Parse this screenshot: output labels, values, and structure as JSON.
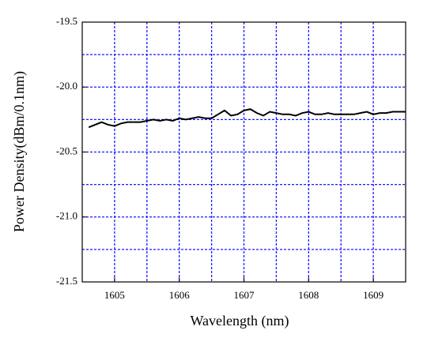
{
  "chart_data": {
    "type": "line",
    "xlabel": "Wavelength (nm)",
    "ylabel": "Power Density(dBm/0.1nm)",
    "x": [
      1604.6,
      1604.7,
      1604.8,
      1604.9,
      1605.0,
      1605.1,
      1605.2,
      1605.3,
      1605.4,
      1605.5,
      1605.6,
      1605.7,
      1605.8,
      1605.9,
      1606.0,
      1606.1,
      1606.2,
      1606.3,
      1606.4,
      1606.5,
      1606.6,
      1606.7,
      1606.8,
      1606.9,
      1607.0,
      1607.1,
      1607.2,
      1607.3,
      1607.4,
      1607.5,
      1607.6,
      1607.7,
      1607.8,
      1607.9,
      1608.0,
      1608.1,
      1608.2,
      1608.3,
      1608.4,
      1608.5,
      1608.6,
      1608.7,
      1608.8,
      1608.9,
      1609.0,
      1609.1,
      1609.2,
      1609.3,
      1609.4,
      1609.5
    ],
    "values": [
      -20.31,
      -20.29,
      -20.27,
      -20.29,
      -20.3,
      -20.28,
      -20.27,
      -20.27,
      -20.27,
      -20.26,
      -20.25,
      -20.26,
      -20.25,
      -20.26,
      -20.24,
      -20.25,
      -20.24,
      -20.23,
      -20.24,
      -20.24,
      -20.21,
      -20.18,
      -20.22,
      -20.21,
      -20.18,
      -20.17,
      -20.2,
      -20.22,
      -20.19,
      -20.2,
      -20.21,
      -20.21,
      -20.22,
      -20.2,
      -20.19,
      -20.21,
      -20.21,
      -20.2,
      -20.21,
      -20.21,
      -20.21,
      -20.21,
      -20.2,
      -20.19,
      -20.21,
      -20.2,
      -20.2,
      -20.19,
      -20.19,
      -20.19
    ],
    "color": "#000000",
    "xlim": [
      1604.5,
      1609.5
    ],
    "xticks": [
      1605,
      1606,
      1607,
      1608,
      1609
    ],
    "xgrid": [
      1605,
      1605.5,
      1606,
      1606.5,
      1607,
      1607.5,
      1608,
      1608.5,
      1609
    ],
    "ylim": [
      -21.5,
      -19.5
    ],
    "yticks": [
      -19.5,
      {
        "value": -20,
        "label": "-20.0"
      },
      -20.5,
      {
        "value": -21,
        "label": "-21.0"
      },
      -21.5
    ],
    "ygrid": [
      -19.75,
      -20,
      -20.25,
      -20.5,
      -20.75,
      -21,
      -21.25
    ],
    "grid_color": "#1a1aff"
  }
}
